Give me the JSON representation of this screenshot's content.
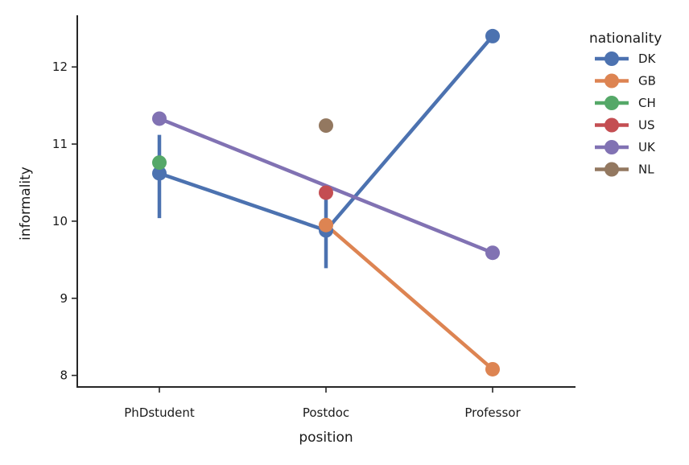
{
  "chart_data": {
    "type": "line",
    "xlabel": "position",
    "ylabel": "informality",
    "categories": [
      "PhDstudent",
      "Postdoc",
      "Professor"
    ],
    "ylim": [
      7.85,
      12.67
    ],
    "yticks": [
      8,
      9,
      10,
      11,
      12
    ],
    "grid": false,
    "legend": {
      "title": "nationality",
      "placement": "right"
    },
    "series": [
      {
        "name": "DK",
        "color": "#4c72b0",
        "values": [
          10.62,
          9.88,
          12.4
        ],
        "error_bars": [
          [
            10.04,
            11.12
          ],
          [
            9.39,
            10.37
          ],
          null
        ]
      },
      {
        "name": "GB",
        "color": "#dd8452",
        "values": [
          null,
          9.95,
          8.08
        ],
        "error_bars": [
          null,
          null,
          null
        ]
      },
      {
        "name": "CH",
        "color": "#55a868",
        "values": [
          10.76,
          null,
          null
        ],
        "error_bars": [
          null,
          null,
          null
        ]
      },
      {
        "name": "US",
        "color": "#c44e52",
        "values": [
          null,
          10.37,
          null
        ],
        "error_bars": [
          null,
          null,
          null
        ]
      },
      {
        "name": "UK",
        "color": "#8172b3",
        "values": [
          11.33,
          null,
          9.59
        ],
        "error_bars": [
          null,
          null,
          null
        ]
      },
      {
        "name": "NL",
        "color": "#937860",
        "values": [
          null,
          11.24,
          null
        ],
        "error_bars": [
          null,
          null,
          null
        ]
      }
    ]
  }
}
